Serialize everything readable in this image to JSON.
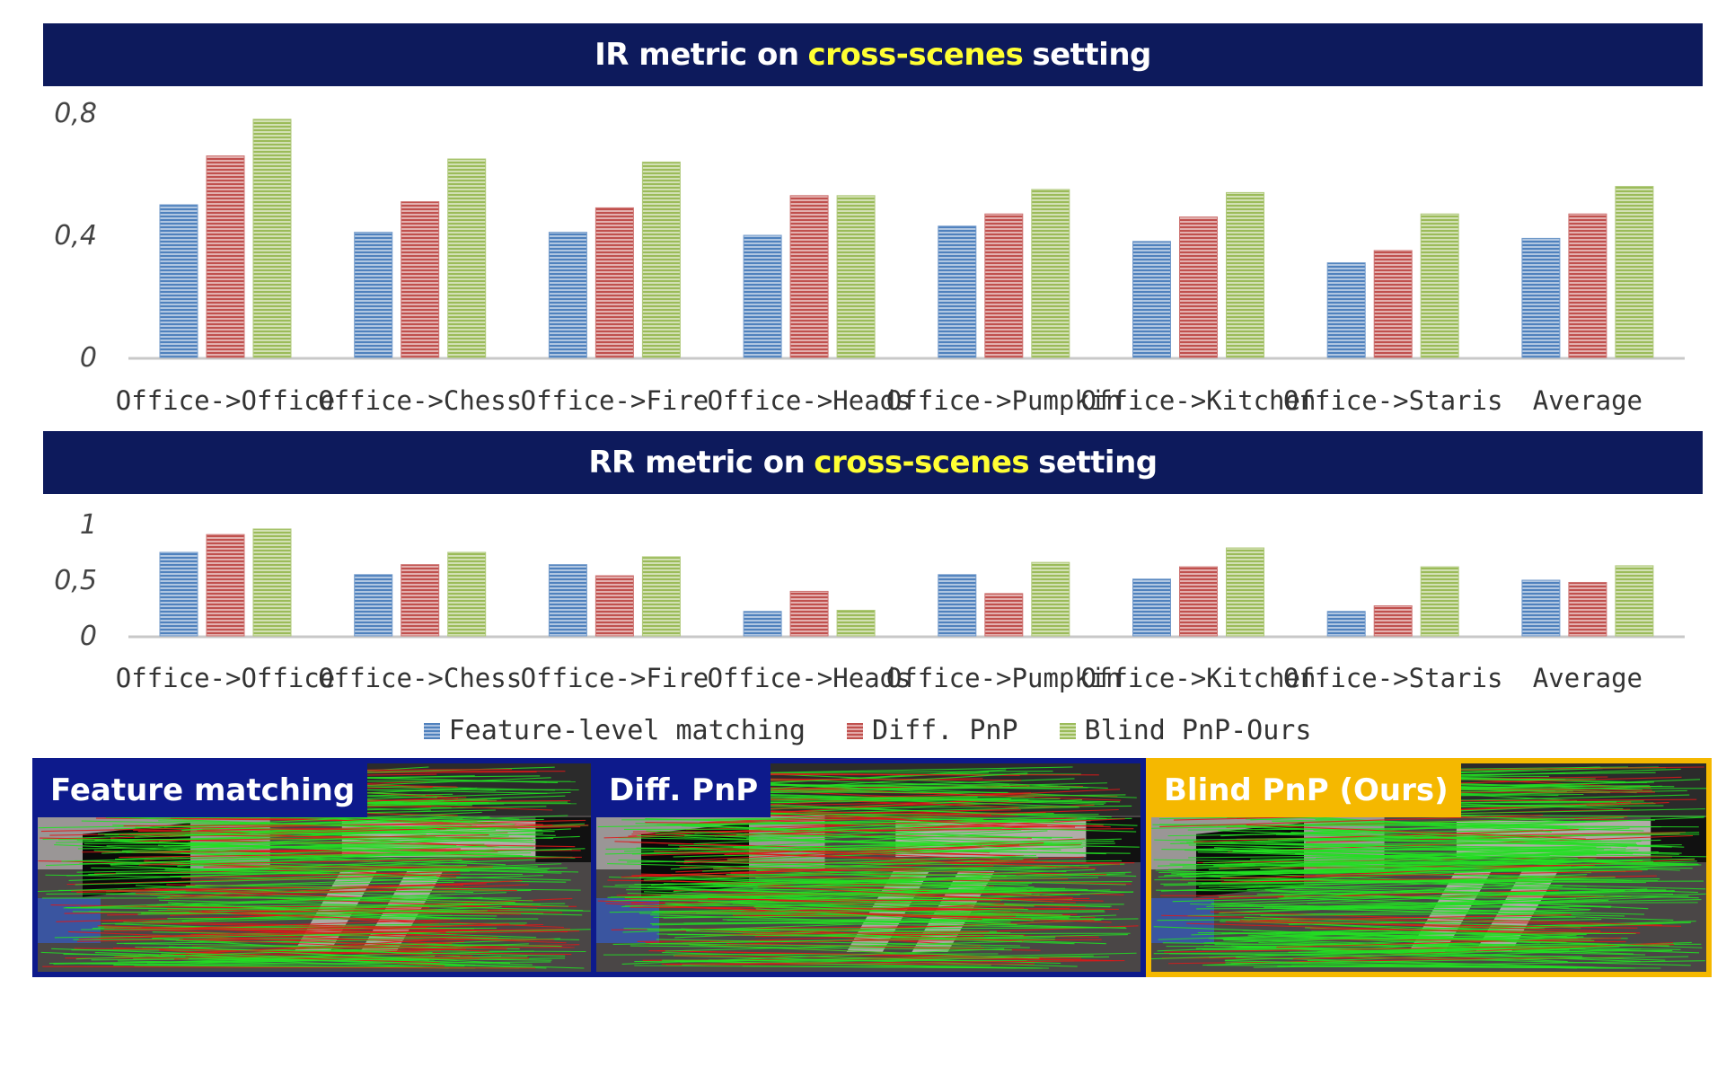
{
  "chart_data": [
    {
      "type": "bar",
      "title_parts": [
        "IR metric on",
        "cross-scenes",
        "setting"
      ],
      "categories": [
        "Office->Office",
        "Office->Chess",
        "Office->Fire",
        "Office->Heads",
        "Office->Pumpkin",
        "Office->Kitchen",
        "Office->Staris",
        "Average"
      ],
      "ylim": [
        0,
        0.8
      ],
      "yticks": [
        "0",
        "0,4",
        "0,8"
      ],
      "ytick_values": [
        0,
        0.4,
        0.8
      ],
      "grid": false,
      "series": [
        {
          "name": "Feature-level matching",
          "color": "#4f81bd",
          "values": [
            0.5,
            0.41,
            0.41,
            0.4,
            0.43,
            0.38,
            0.31,
            0.39
          ]
        },
        {
          "name": "Diff. PnP",
          "color": "#c0504d",
          "values": [
            0.66,
            0.51,
            0.49,
            0.53,
            0.47,
            0.46,
            0.35,
            0.47
          ]
        },
        {
          "name": "Blind PnP-Ours",
          "color": "#9bbb59",
          "values": [
            0.78,
            0.65,
            0.64,
            0.53,
            0.55,
            0.54,
            0.47,
            0.56
          ]
        }
      ]
    },
    {
      "type": "bar",
      "title_parts": [
        "RR metric on",
        "cross-scenes",
        "setting"
      ],
      "categories": [
        "Office->Office",
        "Office->Chess",
        "Office->Fire",
        "Office->Heads",
        "Office->Pumpkin",
        "Office->Kitchen",
        "Office->Staris",
        "Average"
      ],
      "ylim": [
        0,
        1
      ],
      "yticks": [
        "0",
        "0,5",
        "1"
      ],
      "ytick_values": [
        0,
        0.5,
        1
      ],
      "grid": false,
      "series": [
        {
          "name": "Feature-level matching",
          "color": "#4f81bd",
          "values": [
            0.75,
            0.55,
            0.64,
            0.22,
            0.55,
            0.51,
            0.22,
            0.5
          ]
        },
        {
          "name": "Diff. PnP",
          "color": "#c0504d",
          "values": [
            0.91,
            0.64,
            0.54,
            0.4,
            0.38,
            0.62,
            0.27,
            0.48
          ]
        },
        {
          "name": "Blind PnP-Ours",
          "color": "#9bbb59",
          "values": [
            0.96,
            0.75,
            0.71,
            0.23,
            0.66,
            0.79,
            0.62,
            0.63
          ]
        }
      ]
    }
  ],
  "legend": {
    "placement": "bottom-center",
    "items": [
      "Feature-level matching",
      "Diff. PnP",
      "Blind PnP-Ours"
    ]
  },
  "panels": [
    {
      "label": "Feature matching",
      "frame_color": "#0d1a8c",
      "label_bg": "#0d1a8c",
      "label_color": "#ffffff"
    },
    {
      "label": "Diff. PnP",
      "frame_color": "#0d1a8c",
      "label_bg": "#0d1a8c",
      "label_color": "#ffffff"
    },
    {
      "label": "Blind PnP (Ours)",
      "frame_color": "#f5b800",
      "label_bg": "#f5b800",
      "label_color": "#ffffff"
    }
  ]
}
